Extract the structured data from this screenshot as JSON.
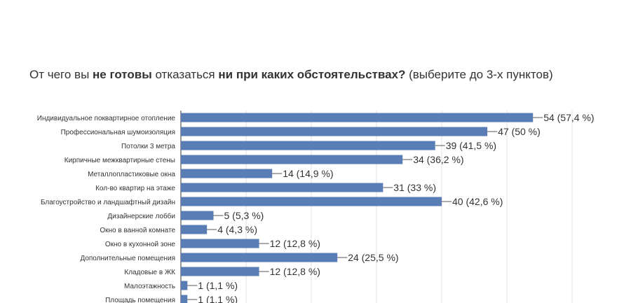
{
  "title_parts": {
    "p1": "От чего вы ",
    "b1": "не готовы",
    "p2": " отказаться ",
    "b2": "ни при каких обстоятельствах?",
    "p3": " (выберите до 3-х пунктов)"
  },
  "colors": {
    "bar": "#5a7db5",
    "grid": "#e0e0e0",
    "axis": "#333333"
  },
  "chart_data": {
    "type": "bar",
    "orientation": "horizontal",
    "title": "От чего вы не готовы отказаться ни при каких обстоятельствах? (выберите до 3-х пунктов)",
    "categories": [
      "Индивидуальное поквартирное отопление",
      "Профессиональная шумоизоляция",
      "Потолки 3 метра",
      "Кирпичные межквартирные стены",
      "Металлопластиковые окна",
      "Кол-во квартир на этаже",
      "Благоустройство и ландшафтный дизайн",
      "Дизайнерские лобби",
      "Окно в ванной комнате",
      "Окно в кухонной зоне",
      "Дополнительные помещения",
      "Кладовые в ЖК",
      "Малоэтажность",
      "Площадь помещения"
    ],
    "values": [
      54,
      47,
      39,
      34,
      14,
      31,
      40,
      5,
      4,
      12,
      24,
      12,
      1,
      1
    ],
    "data_labels": [
      "54 (57,4 %)",
      "47 (50 %)",
      "39 (41,5 %)",
      "34 (36,2 %)",
      "14 (14,9 %)",
      "31 (33 %)",
      "40 (42,6 %)",
      "5 (5,3 %)",
      "4 (4,3 %)",
      "12 (12,8 %)",
      "24 (25,5 %)",
      "12 (12,8 %)",
      "1 (1,1 %)",
      "1 (1,1 %)"
    ],
    "xlim": [
      0,
      60
    ],
    "grid": true
  }
}
